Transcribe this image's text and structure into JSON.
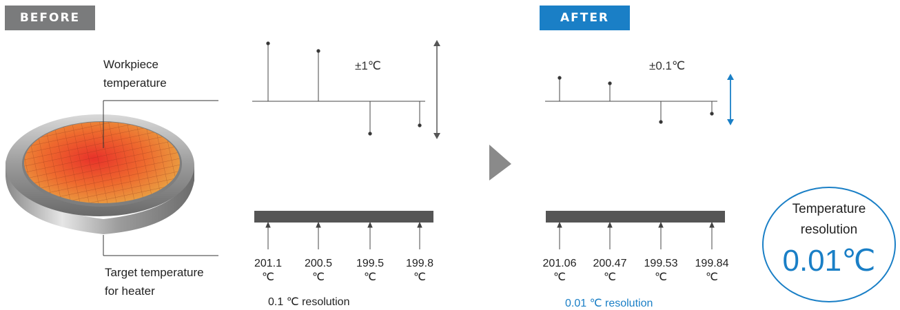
{
  "before": {
    "tag": "BEFORE",
    "workpiece_label": [
      "Workpiece",
      "temperature"
    ],
    "target_label": [
      "Target temperature",
      "for heater"
    ],
    "tolerance": "±1℃",
    "values": [
      "201.1",
      "200.5",
      "199.5",
      "199.8"
    ],
    "unit": "℃",
    "resolution": "0.1 ℃ resolution"
  },
  "after": {
    "tag": "AFTER",
    "tolerance": "±0.1℃",
    "values": [
      "201.06",
      "200.47",
      "199.53",
      "199.84"
    ],
    "unit": "℃",
    "resolution": "0.01 ℃ resolution"
  },
  "badge": {
    "line1": "Temperature",
    "line2": "resolution",
    "value": "0.01℃"
  },
  "colors": {
    "accent": "#1a7fc6",
    "gray": "#7a7b7c",
    "bar": "#555555"
  }
}
